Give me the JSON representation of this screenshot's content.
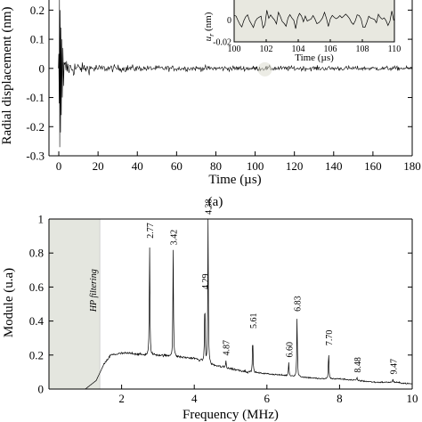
{
  "chart_data": [
    {
      "type": "line",
      "title": "",
      "panel_label": "(a)",
      "xlabel": "Time (µs)",
      "ylabel": "Radial displacement (nm)",
      "xlim": [
        -5,
        180
      ],
      "ylim": [
        -0.3,
        0.25
      ],
      "xticks": [
        0,
        20,
        40,
        60,
        80,
        100,
        120,
        140,
        160,
        180
      ],
      "yticks": [
        -0.3,
        -0.2,
        -0.1,
        0,
        0.1,
        0.2
      ],
      "ytick_labels": [
        "-0.3",
        "-0.2",
        "-0.1",
        "0",
        "0.1",
        "0.2"
      ],
      "series": [
        {
          "description_points": {
            "x": [
              0,
              0.3,
              0.6,
              1.0,
              1.5,
              2,
              3,
              5,
              10,
              20,
              40,
              80,
              180
            ],
            "y_envelope": [
              0.25,
              -0.28,
              0.18,
              -0.22,
              0.1,
              0.06,
              0.04,
              0.03,
              0.02,
              0.012,
              0.01,
              0.008,
              0.006
            ]
          }
        }
      ],
      "inset": {
        "xlabel": "Time (µs)",
        "ylabel": "u_r (nm)",
        "xlim": [
          100,
          110
        ],
        "ylim": [
          -0.02,
          0.02
        ],
        "xticks": [
          100,
          102,
          104,
          106,
          108,
          110
        ],
        "yticks": [
          -0.02,
          0
        ],
        "ytick_labels": [
          "-0.02",
          "0"
        ],
        "background": "#e8e8e0"
      }
    },
    {
      "type": "line",
      "title": "",
      "xlabel": "Frequency (MHz)",
      "ylabel": "Module (u.a)",
      "xlim": [
        0,
        10
      ],
      "ylim": [
        0,
        1
      ],
      "xticks": [
        2,
        4,
        6,
        8,
        10
      ],
      "yticks": [
        0,
        0.2,
        0.4,
        0.6,
        0.8,
        1
      ],
      "ytick_labels": [
        "0",
        "0.2",
        "0.4",
        "0.6",
        "0.8",
        "1"
      ],
      "shaded_region": {
        "x": [
          0,
          1.4
        ],
        "label": "HP filtering",
        "color": "#e4e6df"
      },
      "peaks": [
        {
          "x": 2.77,
          "y": 0.86,
          "label": "2.77"
        },
        {
          "x": 3.42,
          "y": 0.82,
          "label": "3.42"
        },
        {
          "x": 4.29,
          "y": 0.56,
          "label": "4.29"
        },
        {
          "x": 4.38,
          "y": 1.0,
          "label": "4.38"
        },
        {
          "x": 4.87,
          "y": 0.17,
          "label": "4.87"
        },
        {
          "x": 5.61,
          "y": 0.33,
          "label": "5.61"
        },
        {
          "x": 6.6,
          "y": 0.16,
          "label": "6.60"
        },
        {
          "x": 6.83,
          "y": 0.43,
          "label": "6.83"
        },
        {
          "x": 7.7,
          "y": 0.23,
          "label": "7.70"
        },
        {
          "x": 8.48,
          "y": 0.07,
          "label": "8.48"
        },
        {
          "x": 9.47,
          "y": 0.06,
          "label": "9.47"
        }
      ],
      "baseline": {
        "x": [
          0,
          1.0,
          1.3,
          1.5,
          1.7,
          2.0,
          2.3,
          2.6,
          3.0,
          3.5,
          4.0,
          4.5,
          5.0,
          5.5,
          6.0,
          6.5,
          7.0,
          7.5,
          8.0,
          8.5,
          9.0,
          9.5,
          10
        ],
        "y": [
          0,
          0,
          0.05,
          0.14,
          0.2,
          0.21,
          0.21,
          0.2,
          0.2,
          0.19,
          0.18,
          0.14,
          0.12,
          0.1,
          0.09,
          0.08,
          0.07,
          0.06,
          0.06,
          0.05,
          0.04,
          0.04,
          0.03
        ]
      }
    }
  ]
}
